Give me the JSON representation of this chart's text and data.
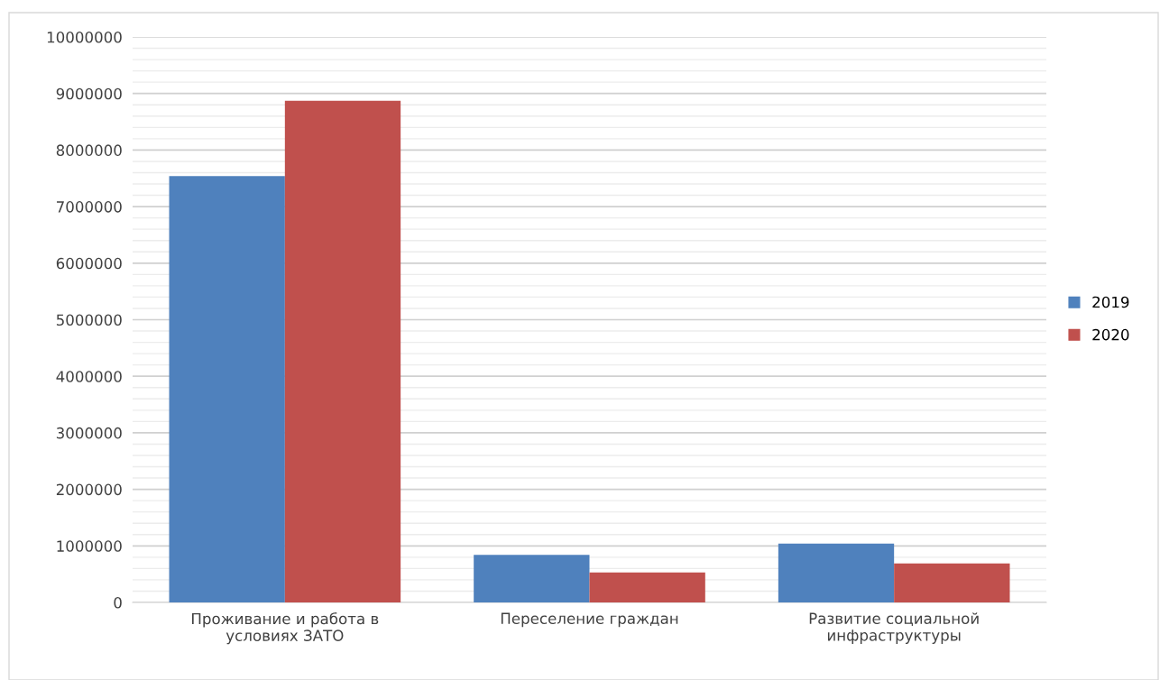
{
  "chart_data": {
    "type": "bar",
    "categories": [
      "Проживание и работа в\nусловиях ЗАТО",
      "Переселение граждан",
      "Развитие социальной\nинфраструктуры"
    ],
    "series": [
      {
        "name": "2019",
        "color": "#4f81bd",
        "values": [
          7540000,
          840000,
          1040000
        ]
      },
      {
        "name": "2020",
        "color": "#c0504d",
        "values": [
          8870000,
          530000,
          690000
        ]
      }
    ],
    "ylim": [
      0,
      10000000
    ],
    "yticks": [
      0,
      1000000,
      2000000,
      3000000,
      4000000,
      5000000,
      6000000,
      7000000,
      8000000,
      9000000,
      10000000
    ],
    "grid": "y",
    "legend": "right"
  }
}
